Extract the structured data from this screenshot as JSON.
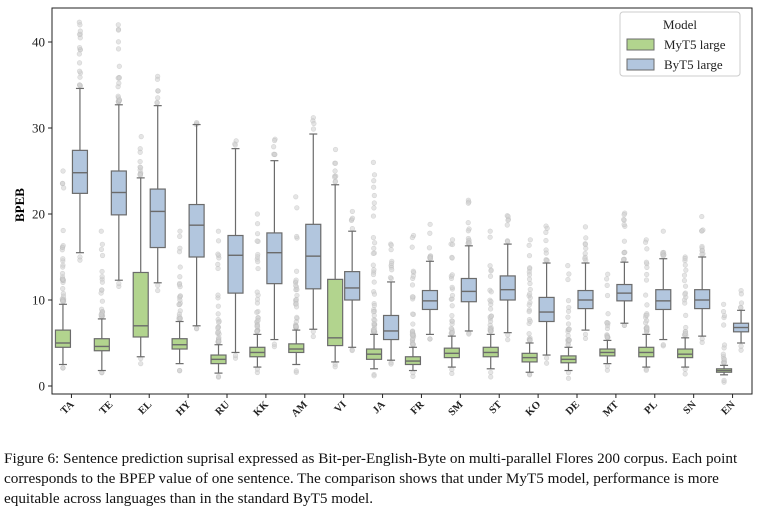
{
  "chart_data": {
    "type": "boxplot",
    "ylabel": "BPEB",
    "ylim": [
      -1,
      45
    ],
    "yticks": [
      0,
      10,
      20,
      30,
      40
    ],
    "grid": false,
    "legend": {
      "title": "Model",
      "position": "top-right"
    },
    "categories": [
      "TA",
      "TE",
      "EL",
      "HY",
      "RU",
      "KK",
      "AM",
      "VI",
      "JA",
      "FR",
      "SM",
      "ST",
      "KO",
      "DE",
      "MT",
      "PL",
      "SN",
      "EN"
    ],
    "series": [
      {
        "name": "MyT5 large",
        "color": "#b2d48e",
        "boxes": [
          {
            "low": 2.5,
            "q1": 4.5,
            "median": 5.0,
            "q3": 6.5,
            "high": 9.5,
            "out_max": 25
          },
          {
            "low": 1.8,
            "q1": 4.1,
            "median": 4.6,
            "q3": 5.5,
            "high": 7.8,
            "out_max": 18
          },
          {
            "low": 3.4,
            "q1": 5.7,
            "median": 7.0,
            "q3": 13.2,
            "high": 24.2,
            "out_max": 29
          },
          {
            "low": 2.6,
            "q1": 4.3,
            "median": 4.8,
            "q3": 5.5,
            "high": 7.5,
            "out_max": 18
          },
          {
            "low": 1.5,
            "q1": 2.6,
            "median": 3.1,
            "q3": 3.6,
            "high": 4.8,
            "out_max": 18
          },
          {
            "low": 2.2,
            "q1": 3.4,
            "median": 3.9,
            "q3": 4.5,
            "high": 6.0,
            "out_max": 20
          },
          {
            "low": 2.5,
            "q1": 3.9,
            "median": 4.3,
            "q3": 4.9,
            "high": 6.5,
            "out_max": 22
          },
          {
            "low": 2.8,
            "q1": 4.7,
            "median": 5.6,
            "q3": 12.4,
            "high": 23.4,
            "out_max": 27.5
          },
          {
            "low": 2.0,
            "q1": 3.1,
            "median": 3.7,
            "q3": 4.3,
            "high": 6.0,
            "out_max": 26
          },
          {
            "low": 1.8,
            "q1": 2.5,
            "median": 2.9,
            "q3": 3.4,
            "high": 4.5,
            "out_max": 17.5
          },
          {
            "low": 2.2,
            "q1": 3.3,
            "median": 3.8,
            "q3": 4.4,
            "high": 5.8,
            "out_max": 17
          },
          {
            "low": 2.0,
            "q1": 3.4,
            "median": 3.9,
            "q3": 4.5,
            "high": 6.0,
            "out_max": 18
          },
          {
            "low": 1.6,
            "q1": 2.8,
            "median": 3.3,
            "q3": 3.8,
            "high": 5.0,
            "out_max": 17
          },
          {
            "low": 1.8,
            "q1": 2.7,
            "median": 3.1,
            "q3": 3.5,
            "high": 4.5,
            "out_max": 14
          },
          {
            "low": 2.6,
            "q1": 3.5,
            "median": 3.9,
            "q3": 4.3,
            "high": 5.3,
            "out_max": 13
          },
          {
            "low": 2.2,
            "q1": 3.4,
            "median": 3.9,
            "q3": 4.5,
            "high": 6.0,
            "out_max": 17
          },
          {
            "low": 2.2,
            "q1": 3.3,
            "median": 3.7,
            "q3": 4.3,
            "high": 5.6,
            "out_max": 15
          },
          {
            "low": 1.3,
            "q1": 1.6,
            "median": 1.8,
            "q3": 2.0,
            "high": 2.4,
            "out_max": 9.5
          }
        ]
      },
      {
        "name": "ByT5 large",
        "color": "#b2c6de",
        "boxes": [
          {
            "low": 15.5,
            "q1": 22.4,
            "median": 24.8,
            "q3": 27.4,
            "high": 34.6,
            "out_max": 42.3
          },
          {
            "low": 12.3,
            "q1": 19.9,
            "median": 22.5,
            "q3": 25.0,
            "high": 32.7,
            "out_max": 42.0
          },
          {
            "low": 12.0,
            "q1": 16.1,
            "median": 20.3,
            "q3": 22.9,
            "high": 32.6,
            "out_max": 36.0
          },
          {
            "low": 7.0,
            "q1": 15.0,
            "median": 18.7,
            "q3": 21.1,
            "high": 30.4,
            "out_max": 30.4
          },
          {
            "low": 3.9,
            "q1": 10.8,
            "median": 15.2,
            "q3": 17.5,
            "high": 27.6,
            "out_max": 28.5
          },
          {
            "low": 5.4,
            "q1": 11.9,
            "median": 15.5,
            "q3": 17.8,
            "high": 26.2,
            "out_max": 28.7
          },
          {
            "low": 6.6,
            "q1": 11.3,
            "median": 15.1,
            "q3": 18.8,
            "high": 29.3,
            "out_max": 31.2
          },
          {
            "low": 4.5,
            "q1": 10.0,
            "median": 11.4,
            "q3": 13.3,
            "high": 18.0,
            "out_max": 20.3
          },
          {
            "low": 3.0,
            "q1": 5.4,
            "median": 6.4,
            "q3": 8.2,
            "high": 12.1,
            "out_max": 16.5
          },
          {
            "low": 6.0,
            "q1": 8.9,
            "median": 9.9,
            "q3": 11.1,
            "high": 14.5,
            "out_max": 18.8
          },
          {
            "low": 6.4,
            "q1": 9.8,
            "median": 11.0,
            "q3": 12.5,
            "high": 16.3,
            "out_max": 21.6
          },
          {
            "low": 6.2,
            "q1": 10.0,
            "median": 11.2,
            "q3": 12.8,
            "high": 16.5,
            "out_max": 19.8
          },
          {
            "low": 3.6,
            "q1": 7.5,
            "median": 8.6,
            "q3": 10.3,
            "high": 14.3,
            "out_max": 18.6
          },
          {
            "low": 6.5,
            "q1": 9.0,
            "median": 10.0,
            "q3": 11.1,
            "high": 14.3,
            "out_max": 18.5
          },
          {
            "low": 7.3,
            "q1": 9.9,
            "median": 10.8,
            "q3": 11.8,
            "high": 14.4,
            "out_max": 20.1
          },
          {
            "low": 5.4,
            "q1": 8.9,
            "median": 9.9,
            "q3": 11.2,
            "high": 14.8,
            "out_max": 18.0
          },
          {
            "low": 5.8,
            "q1": 9.0,
            "median": 10.0,
            "q3": 11.2,
            "high": 15.0,
            "out_max": 19.7
          },
          {
            "low": 5.0,
            "q1": 6.3,
            "median": 6.8,
            "q3": 7.3,
            "high": 8.8,
            "out_max": 11.1
          }
        ]
      }
    ]
  },
  "caption": "Figure 6: Sentence prediction suprisal expressed as Bit-per-English-Byte on multi-parallel Flores 200 corpus. Each point corresponds to the BPEP value of one sentence. The comparison shows that under MyT5 model, performance is more equitable across languages than in the standard ByT5 model."
}
